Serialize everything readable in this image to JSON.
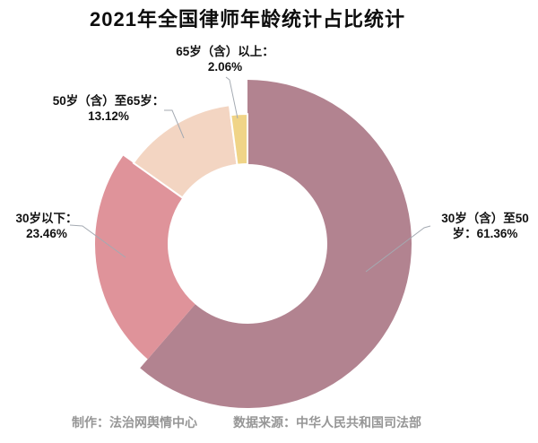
{
  "title": "2021年全国律师年龄统计占比统计",
  "footer": {
    "producer": "制作：法治网舆情中心",
    "source": "数据来源：中华人民共和国司法部"
  },
  "chart_data": {
    "type": "pie",
    "subtype": "donut-rose",
    "title": "2021年全国律师年龄统计占比统计",
    "unit": "%",
    "start_angle": "12-oclock",
    "direction": "clockwise",
    "legend": "none",
    "inner_radius_px": 89,
    "label_line_color": "#a4aab2",
    "label_text_color": "#111111",
    "slices": [
      {
        "name": "30岁（含）至50岁",
        "value": 61.36,
        "color": "#b28390",
        "outer_radius": 183,
        "label_lines": [
          "30岁（含）至50",
          "岁：61.36%"
        ]
      },
      {
        "name": "30岁以下",
        "value": 23.46,
        "color": "#df939a",
        "outer_radius": 170,
        "label_lines": [
          "30岁以下：",
          "23.46%"
        ]
      },
      {
        "name": "50岁（含）至65岁",
        "value": 13.12,
        "color": "#f3d5c2",
        "outer_radius": 156,
        "label_lines": [
          "50岁（含）至65岁：",
          "13.12%"
        ]
      },
      {
        "name": "65岁（含）以上",
        "value": 2.06,
        "color": "#f0d487",
        "outer_radius": 145,
        "label_lines": [
          "65岁（含）以上：",
          "2.06%"
        ]
      }
    ]
  }
}
